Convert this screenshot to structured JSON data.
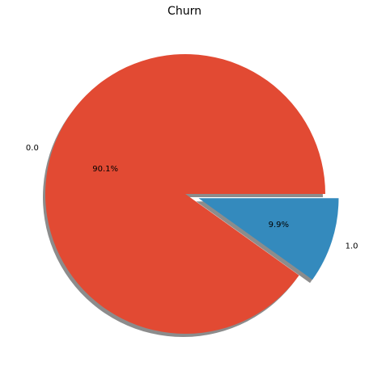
{
  "chart_data": {
    "type": "pie",
    "title": "Churn",
    "slices": [
      {
        "label": "0.0",
        "value": 90.1,
        "pct_label": "90.1%",
        "color": "#E24A33",
        "explode": 0
      },
      {
        "label": "1.0",
        "value": 9.9,
        "pct_label": "9.9%",
        "color": "#348ABD",
        "explode": 0.1
      }
    ],
    "start_angle": 0,
    "direction": "counterclockwise",
    "shadow": true,
    "shadow_color": "#8c8c8c"
  }
}
